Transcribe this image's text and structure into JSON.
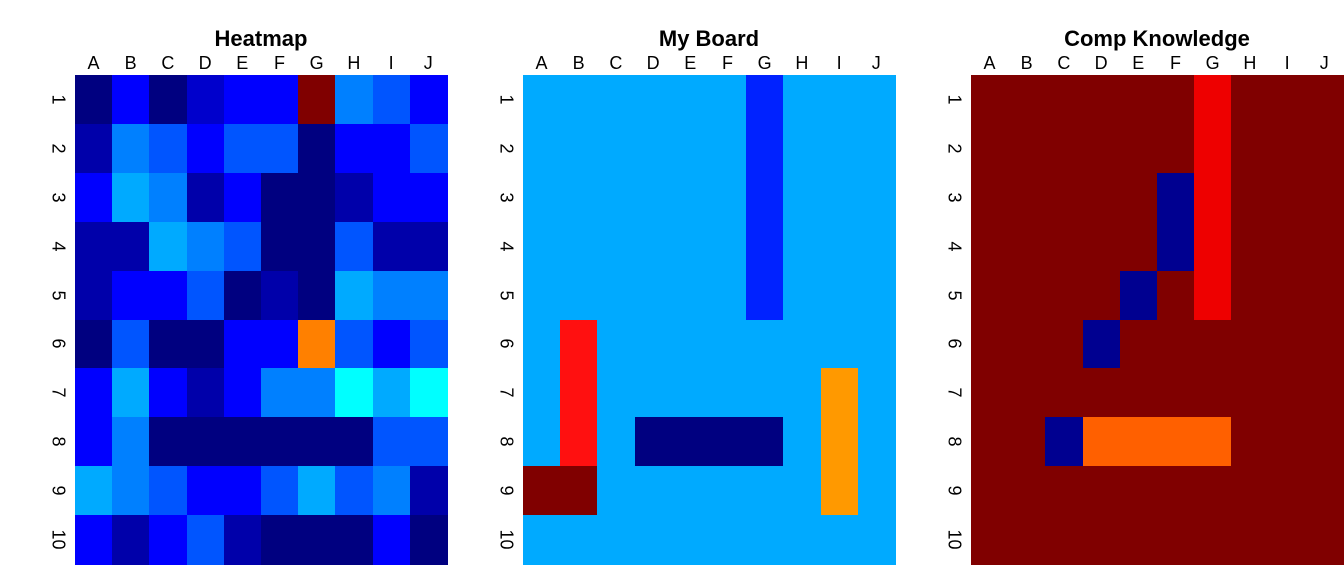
{
  "chart_data": [
    {
      "type": "heatmap",
      "title": "Heatmap",
      "columns": [
        "A",
        "B",
        "C",
        "D",
        "E",
        "F",
        "G",
        "H",
        "I",
        "J"
      ],
      "rows": [
        "1",
        "2",
        "3",
        "4",
        "5",
        "6",
        "7",
        "8",
        "9",
        "10"
      ],
      "colors": [
        [
          "#000080",
          "#0000ff",
          "#000080",
          "#0000cc",
          "#0000ff",
          "#0000ff",
          "#800000",
          "#0080ff",
          "#0055ff",
          "#0000ff"
        ],
        [
          "#0000aa",
          "#0080ff",
          "#0055ff",
          "#0000ff",
          "#0055ff",
          "#0055ff",
          "#000080",
          "#0000ff",
          "#0000ff",
          "#0055ff"
        ],
        [
          "#0000ff",
          "#00aaff",
          "#0080ff",
          "#0000aa",
          "#0000ff",
          "#000080",
          "#000080",
          "#0000aa",
          "#0000ff",
          "#0000ff"
        ],
        [
          "#0000aa",
          "#0000aa",
          "#00aaff",
          "#0080ff",
          "#0055ff",
          "#000080",
          "#000080",
          "#0055ff",
          "#0000aa",
          "#0000aa"
        ],
        [
          "#0000aa",
          "#0000ff",
          "#0000ff",
          "#0055ff",
          "#000080",
          "#0000aa",
          "#000080",
          "#00aaff",
          "#0080ff",
          "#0080ff"
        ],
        [
          "#000080",
          "#0055ff",
          "#000080",
          "#000080",
          "#0000ff",
          "#0000ff",
          "#ff8000",
          "#0055ff",
          "#0000ff",
          "#0055ff"
        ],
        [
          "#0000ff",
          "#00aaff",
          "#0000ff",
          "#0000aa",
          "#0000ff",
          "#0080ff",
          "#0080ff",
          "#00ffff",
          "#00aaff",
          "#00ffff"
        ],
        [
          "#0000ff",
          "#0080ff",
          "#000080",
          "#000080",
          "#000080",
          "#000080",
          "#000080",
          "#000080",
          "#0055ff",
          "#0055ff"
        ],
        [
          "#00aaff",
          "#0080ff",
          "#0055ff",
          "#0000ff",
          "#0000ff",
          "#0055ff",
          "#00aaff",
          "#0055ff",
          "#0080ff",
          "#0000aa"
        ],
        [
          "#0000ff",
          "#0000aa",
          "#0000ff",
          "#0055ff",
          "#0000aa",
          "#000080",
          "#000080",
          "#000080",
          "#0000ff",
          "#000080"
        ]
      ]
    },
    {
      "type": "heatmap",
      "title": "My Board",
      "columns": [
        "A",
        "B",
        "C",
        "D",
        "E",
        "F",
        "G",
        "H",
        "I",
        "J"
      ],
      "rows": [
        "1",
        "2",
        "3",
        "4",
        "5",
        "6",
        "7",
        "8",
        "9",
        "10"
      ],
      "colors": [
        [
          "#00aaff",
          "#00aaff",
          "#00aaff",
          "#00aaff",
          "#00aaff",
          "#00aaff",
          "#0022ff",
          "#00aaff",
          "#00aaff",
          "#00aaff"
        ],
        [
          "#00aaff",
          "#00aaff",
          "#00aaff",
          "#00aaff",
          "#00aaff",
          "#00aaff",
          "#0022ff",
          "#00aaff",
          "#00aaff",
          "#00aaff"
        ],
        [
          "#00aaff",
          "#00aaff",
          "#00aaff",
          "#00aaff",
          "#00aaff",
          "#00aaff",
          "#0022ff",
          "#00aaff",
          "#00aaff",
          "#00aaff"
        ],
        [
          "#00aaff",
          "#00aaff",
          "#00aaff",
          "#00aaff",
          "#00aaff",
          "#00aaff",
          "#0022ff",
          "#00aaff",
          "#00aaff",
          "#00aaff"
        ],
        [
          "#00aaff",
          "#00aaff",
          "#00aaff",
          "#00aaff",
          "#00aaff",
          "#00aaff",
          "#0022ff",
          "#00aaff",
          "#00aaff",
          "#00aaff"
        ],
        [
          "#00aaff",
          "#ff1010",
          "#00aaff",
          "#00aaff",
          "#00aaff",
          "#00aaff",
          "#00aaff",
          "#00aaff",
          "#00aaff",
          "#00aaff"
        ],
        [
          "#00aaff",
          "#ff1010",
          "#00aaff",
          "#00aaff",
          "#00aaff",
          "#00aaff",
          "#00aaff",
          "#00aaff",
          "#ff9900",
          "#00aaff"
        ],
        [
          "#00aaff",
          "#ff1010",
          "#00aaff",
          "#000080",
          "#000080",
          "#000080",
          "#000080",
          "#00aaff",
          "#ff9900",
          "#00aaff"
        ],
        [
          "#800000",
          "#800000",
          "#00aaff",
          "#00aaff",
          "#00aaff",
          "#00aaff",
          "#00aaff",
          "#00aaff",
          "#ff9900",
          "#00aaff"
        ],
        [
          "#00aaff",
          "#00aaff",
          "#00aaff",
          "#00aaff",
          "#00aaff",
          "#00aaff",
          "#00aaff",
          "#00aaff",
          "#00aaff",
          "#00aaff"
        ]
      ]
    },
    {
      "type": "heatmap",
      "title": "Comp Knowledge",
      "columns": [
        "A",
        "B",
        "C",
        "D",
        "E",
        "F",
        "G",
        "H",
        "I",
        "J"
      ],
      "rows": [
        "1",
        "2",
        "3",
        "4",
        "5",
        "6",
        "7",
        "8",
        "9",
        "10"
      ],
      "colors": [
        [
          "#800000",
          "#800000",
          "#800000",
          "#800000",
          "#800000",
          "#800000",
          "#ee0000",
          "#800000",
          "#800000",
          "#800000"
        ],
        [
          "#800000",
          "#800000",
          "#800000",
          "#800000",
          "#800000",
          "#800000",
          "#ee0000",
          "#800000",
          "#800000",
          "#800000"
        ],
        [
          "#800000",
          "#800000",
          "#800000",
          "#800000",
          "#800000",
          "#000090",
          "#ee0000",
          "#800000",
          "#800000",
          "#800000"
        ],
        [
          "#800000",
          "#800000",
          "#800000",
          "#800000",
          "#800000",
          "#000090",
          "#ee0000",
          "#800000",
          "#800000",
          "#800000"
        ],
        [
          "#800000",
          "#800000",
          "#800000",
          "#800000",
          "#000090",
          "#800000",
          "#ee0000",
          "#800000",
          "#800000",
          "#800000"
        ],
        [
          "#800000",
          "#800000",
          "#800000",
          "#000090",
          "#800000",
          "#800000",
          "#800000",
          "#800000",
          "#800000",
          "#800000"
        ],
        [
          "#800000",
          "#800000",
          "#800000",
          "#800000",
          "#800000",
          "#800000",
          "#800000",
          "#800000",
          "#800000",
          "#800000"
        ],
        [
          "#800000",
          "#800000",
          "#000090",
          "#ff6000",
          "#ff6000",
          "#ff6000",
          "#ff6000",
          "#800000",
          "#800000",
          "#800000"
        ],
        [
          "#800000",
          "#800000",
          "#800000",
          "#800000",
          "#800000",
          "#800000",
          "#800000",
          "#800000",
          "#800000",
          "#800000"
        ],
        [
          "#800000",
          "#800000",
          "#800000",
          "#800000",
          "#800000",
          "#800000",
          "#800000",
          "#800000",
          "#800000",
          "#800000"
        ]
      ]
    }
  ]
}
